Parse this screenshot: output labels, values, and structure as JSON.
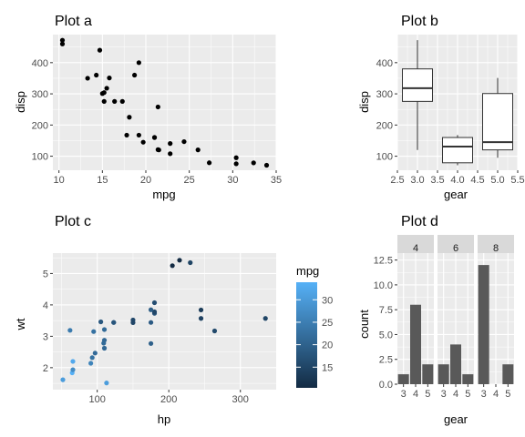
{
  "chart_data": [
    {
      "id": "a",
      "type": "scatter",
      "title": "Plot a",
      "xlabel": "mpg",
      "ylabel": "disp",
      "xlim": [
        9.3,
        35
      ],
      "ylim": [
        55,
        490
      ],
      "xticks": [
        10,
        15,
        20,
        25,
        30,
        35
      ],
      "yticks": [
        100,
        200,
        300,
        400
      ],
      "points": [
        {
          "x": 21,
          "y": 160
        },
        {
          "x": 21,
          "y": 160
        },
        {
          "x": 22.8,
          "y": 108
        },
        {
          "x": 21.4,
          "y": 258
        },
        {
          "x": 18.7,
          "y": 360
        },
        {
          "x": 18.1,
          "y": 225
        },
        {
          "x": 14.3,
          "y": 360
        },
        {
          "x": 24.4,
          "y": 146.7
        },
        {
          "x": 22.8,
          "y": 140.8
        },
        {
          "x": 19.2,
          "y": 167.6
        },
        {
          "x": 17.8,
          "y": 167.6
        },
        {
          "x": 16.4,
          "y": 275.8
        },
        {
          "x": 17.3,
          "y": 275.8
        },
        {
          "x": 15.2,
          "y": 275.8
        },
        {
          "x": 10.4,
          "y": 472
        },
        {
          "x": 10.4,
          "y": 460
        },
        {
          "x": 14.7,
          "y": 440
        },
        {
          "x": 32.4,
          "y": 78.7
        },
        {
          "x": 30.4,
          "y": 75.7
        },
        {
          "x": 33.9,
          "y": 71.1
        },
        {
          "x": 21.5,
          "y": 120.1
        },
        {
          "x": 15.5,
          "y": 318
        },
        {
          "x": 15.2,
          "y": 304
        },
        {
          "x": 13.3,
          "y": 350
        },
        {
          "x": 19.2,
          "y": 400
        },
        {
          "x": 27.3,
          "y": 79
        },
        {
          "x": 26,
          "y": 120.3
        },
        {
          "x": 30.4,
          "y": 95.1
        },
        {
          "x": 15.8,
          "y": 351
        },
        {
          "x": 19.7,
          "y": 145
        },
        {
          "x": 15,
          "y": 301
        },
        {
          "x": 21.4,
          "y": 121
        }
      ]
    },
    {
      "id": "b",
      "type": "boxplot",
      "title": "Plot b",
      "xlabel": "gear",
      "ylabel": "disp",
      "xlim": [
        2.5,
        5.5
      ],
      "ylim": [
        55,
        490
      ],
      "xticks": [
        "2.5",
        "3.0",
        "3.5",
        "4.0",
        "4.5",
        "5.0",
        "5.5"
      ],
      "yticks": [
        100,
        200,
        300,
        400
      ],
      "boxes": [
        {
          "x": 3,
          "min": 120.1,
          "q1": 275.8,
          "median": 318,
          "q3": 380,
          "max": 472
        },
        {
          "x": 4,
          "min": 71.1,
          "q1": 78.9,
          "median": 130.9,
          "q3": 160,
          "max": 167.6
        },
        {
          "x": 5,
          "min": 95.1,
          "q1": 120.3,
          "median": 145,
          "q3": 301,
          "max": 351
        }
      ]
    },
    {
      "id": "c",
      "type": "scatter",
      "title": "Plot c",
      "xlabel": "hp",
      "ylabel": "wt",
      "xlim": [
        38,
        350
      ],
      "ylim": [
        1.3,
        5.65
      ],
      "xticks": [
        100,
        200,
        300
      ],
      "yticks": [
        2,
        3,
        4,
        5
      ],
      "legend": {
        "title": "mpg",
        "placement": "right",
        "range": [
          10.4,
          33.9
        ],
        "ticks": [
          15,
          20,
          25,
          30
        ],
        "color_low": "#132B43",
        "color_high": "#56B1F7"
      },
      "points": [
        {
          "x": 110,
          "y": 2.62,
          "c": 21
        },
        {
          "x": 110,
          "y": 2.875,
          "c": 21
        },
        {
          "x": 93,
          "y": 2.32,
          "c": 22.8
        },
        {
          "x": 110,
          "y": 3.215,
          "c": 21.4
        },
        {
          "x": 175,
          "y": 3.44,
          "c": 18.7
        },
        {
          "x": 105,
          "y": 3.46,
          "c": 18.1
        },
        {
          "x": 245,
          "y": 3.57,
          "c": 14.3
        },
        {
          "x": 62,
          "y": 3.19,
          "c": 24.4
        },
        {
          "x": 95,
          "y": 3.15,
          "c": 22.8
        },
        {
          "x": 123,
          "y": 3.44,
          "c": 19.2
        },
        {
          "x": 123,
          "y": 3.44,
          "c": 17.8
        },
        {
          "x": 180,
          "y": 4.07,
          "c": 16.4
        },
        {
          "x": 180,
          "y": 3.73,
          "c": 17.3
        },
        {
          "x": 180,
          "y": 3.78,
          "c": 15.2
        },
        {
          "x": 205,
          "y": 5.25,
          "c": 10.4
        },
        {
          "x": 215,
          "y": 5.424,
          "c": 10.4
        },
        {
          "x": 230,
          "y": 5.345,
          "c": 14.7
        },
        {
          "x": 66,
          "y": 2.2,
          "c": 32.4
        },
        {
          "x": 52,
          "y": 1.615,
          "c": 30.4
        },
        {
          "x": 65,
          "y": 1.835,
          "c": 33.9
        },
        {
          "x": 97,
          "y": 2.465,
          "c": 21.5
        },
        {
          "x": 150,
          "y": 3.52,
          "c": 15.5
        },
        {
          "x": 150,
          "y": 3.435,
          "c": 15.2
        },
        {
          "x": 245,
          "y": 3.84,
          "c": 13.3
        },
        {
          "x": 175,
          "y": 3.845,
          "c": 19.2
        },
        {
          "x": 66,
          "y": 1.935,
          "c": 27.3
        },
        {
          "x": 91,
          "y": 2.14,
          "c": 26
        },
        {
          "x": 113,
          "y": 1.513,
          "c": 30.4
        },
        {
          "x": 264,
          "y": 3.17,
          "c": 15.8
        },
        {
          "x": 175,
          "y": 2.77,
          "c": 19.7
        },
        {
          "x": 335,
          "y": 3.57,
          "c": 15
        },
        {
          "x": 109,
          "y": 2.78,
          "c": 21.4
        }
      ]
    },
    {
      "id": "d",
      "type": "bar",
      "title": "Plot d",
      "xlabel": "gear",
      "ylabel": "count",
      "ylim": [
        0,
        13.2
      ],
      "yticks": [
        "0.0",
        "2.5",
        "5.0",
        "7.5",
        "10.0",
        "12.5"
      ],
      "categories": [
        "3",
        "4",
        "5"
      ],
      "facets": [
        {
          "label": "4",
          "values": [
            1,
            8,
            2
          ]
        },
        {
          "label": "6",
          "values": [
            2,
            4,
            1
          ]
        },
        {
          "label": "8",
          "values": [
            12,
            0,
            2
          ]
        }
      ]
    }
  ]
}
